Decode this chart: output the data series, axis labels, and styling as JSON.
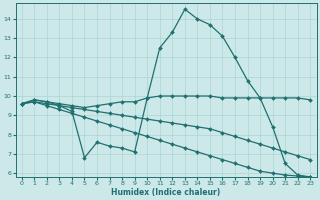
{
  "xlabel": "Humidex (Indice chaleur)",
  "xlim": [
    -0.5,
    23.5
  ],
  "ylim": [
    5.8,
    14.8
  ],
  "yticks": [
    6,
    7,
    8,
    9,
    10,
    11,
    12,
    13,
    14
  ],
  "xticks": [
    0,
    1,
    2,
    3,
    4,
    5,
    6,
    7,
    8,
    9,
    10,
    11,
    12,
    13,
    14,
    15,
    16,
    17,
    18,
    19,
    20,
    21,
    22,
    23
  ],
  "bg_color": "#cce8e8",
  "grid_color": "#aad4d4",
  "line_color": "#207070",
  "lines": [
    {
      "x": [
        0,
        1,
        2,
        3,
        4,
        5,
        6,
        7,
        8,
        9,
        10,
        11,
        12,
        13,
        14,
        15,
        16,
        17,
        18,
        19,
        20,
        21,
        22,
        23
      ],
      "y": [
        9.6,
        9.8,
        9.7,
        9.5,
        9.2,
        6.8,
        7.6,
        7.4,
        7.3,
        7.1,
        9.9,
        12.5,
        13.3,
        14.5,
        14.0,
        13.7,
        13.1,
        12.0,
        10.8,
        9.9,
        8.4,
        6.5,
        5.9,
        5.8
      ]
    },
    {
      "x": [
        0,
        1,
        2,
        3,
        4,
        5,
        6,
        7,
        8,
        9,
        10,
        11,
        12,
        13,
        14,
        15,
        16,
        17,
        18,
        19,
        20,
        21,
        22,
        23
      ],
      "y": [
        9.6,
        9.8,
        9.7,
        9.6,
        9.5,
        9.4,
        9.5,
        9.6,
        9.7,
        9.7,
        9.9,
        10.0,
        10.0,
        10.0,
        10.0,
        10.0,
        9.9,
        9.9,
        9.9,
        9.9,
        9.9,
        9.9,
        9.9,
        9.8
      ]
    },
    {
      "x": [
        0,
        1,
        2,
        3,
        4,
        5,
        6,
        7,
        8,
        9,
        10,
        11,
        12,
        13,
        14,
        15,
        16,
        17,
        18,
        19,
        20,
        21,
        22,
        23
      ],
      "y": [
        9.6,
        9.7,
        9.6,
        9.5,
        9.4,
        9.3,
        9.2,
        9.1,
        9.0,
        8.9,
        8.8,
        8.7,
        8.6,
        8.5,
        8.4,
        8.3,
        8.1,
        7.9,
        7.7,
        7.5,
        7.3,
        7.1,
        6.9,
        6.7
      ]
    },
    {
      "x": [
        0,
        1,
        2,
        3,
        4,
        5,
        6,
        7,
        8,
        9,
        10,
        11,
        12,
        13,
        14,
        15,
        16,
        17,
        18,
        19,
        20,
        21,
        22,
        23
      ],
      "y": [
        9.6,
        9.7,
        9.5,
        9.3,
        9.1,
        8.9,
        8.7,
        8.5,
        8.3,
        8.1,
        7.9,
        7.7,
        7.5,
        7.3,
        7.1,
        6.9,
        6.7,
        6.5,
        6.3,
        6.1,
        6.0,
        5.9,
        5.85,
        5.8
      ]
    }
  ]
}
